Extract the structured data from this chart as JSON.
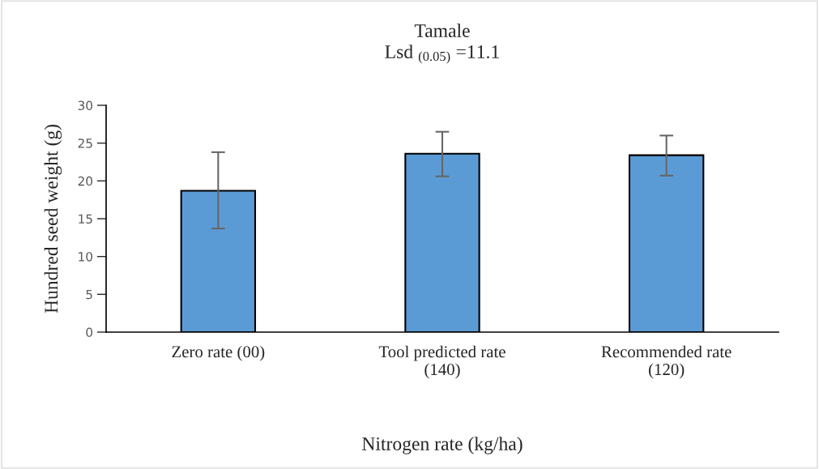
{
  "chart_data": {
    "type": "bar",
    "title": "Tamale",
    "subtitle": "Lsd $_{(0.05)}$ =11.1",
    "xlabel": "Nitrogen rate (kg/ha)",
    "ylabel": "Hundred seed weight (g)",
    "categories": [
      "Zero rate (00)",
      "Tool predicted rate\n(140)",
      "Recommended rate\n(120)"
    ],
    "values": [
      18.7,
      23.6,
      23.4
    ],
    "color": "#5b9bd5",
    "errors": [
      [
        13.7,
        23.8
      ],
      [
        20.6,
        26.5
      ],
      [
        20.7,
        26.0
      ]
    ],
    "ylim": [
      0,
      30
    ],
    "yticks": [
      0,
      5,
      10,
      15,
      20,
      25,
      30
    ],
    "grid": false
  }
}
